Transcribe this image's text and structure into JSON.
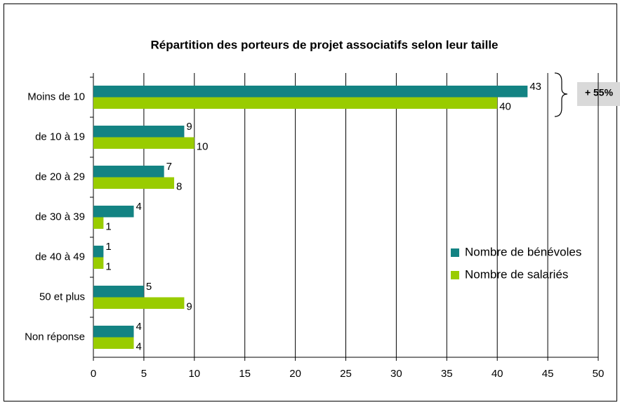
{
  "chart_data": {
    "type": "bar",
    "orientation": "horizontal",
    "title": "Répartition des porteurs de projet associatifs selon leur taille",
    "categories": [
      "Moins de 10",
      "de 10 à 19",
      "de 20 à 29",
      "de 30 à 39",
      "de 40 à 49",
      "50 et plus",
      "Non réponse"
    ],
    "series": [
      {
        "name": "Nombre de bénévoles",
        "color": "#138383",
        "values": [
          43,
          9,
          7,
          4,
          1,
          5,
          4
        ]
      },
      {
        "name": "Nombre de salariés",
        "color": "#99cc00",
        "values": [
          40,
          10,
          8,
          1,
          1,
          9,
          4
        ]
      }
    ],
    "xlim": [
      0,
      50
    ],
    "xticks": [
      0,
      5,
      10,
      15,
      20,
      25,
      30,
      35,
      40,
      45,
      50
    ],
    "grid": true,
    "legend": "right",
    "annotation": "+ 55%"
  }
}
